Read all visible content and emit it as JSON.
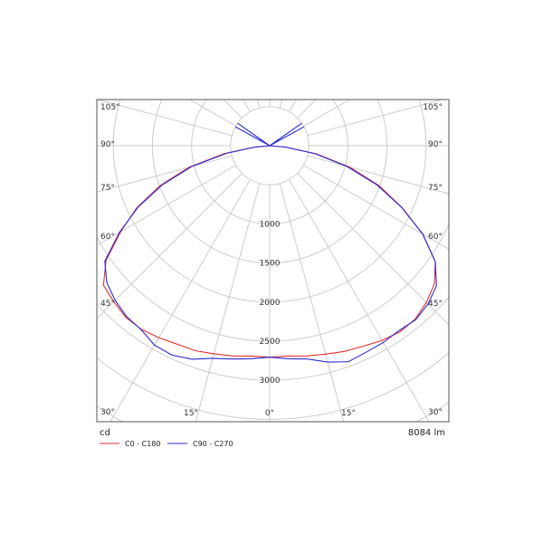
{
  "chart_data": {
    "type": "polar-luminous-intensity",
    "unit_label": "cd",
    "flux_label": "8084 lm",
    "radial_ticks": [
      "1000",
      "1500",
      "2000",
      "2500",
      "3000"
    ],
    "radial_values": [
      1000,
      1500,
      2000,
      2500,
      3000
    ],
    "angle_ticks_left": [
      "105°",
      "90°",
      "75°",
      "60°",
      "45°",
      "30°"
    ],
    "angle_ticks_right": [
      "105°",
      "90°",
      "75°",
      "60°",
      "45°",
      "30°"
    ],
    "angle_ticks_bottom": [
      "15°",
      "0°",
      "15°"
    ],
    "angles": [
      0,
      5,
      10,
      15,
      20,
      25,
      30,
      35,
      40,
      45,
      50,
      55,
      60,
      65,
      70,
      75,
      80,
      85,
      90,
      95,
      100,
      105
    ],
    "series": [
      {
        "name": "C0 - C180",
        "color": "#e03030",
        "side_a": [
          2705,
          2700,
          2730,
          2760,
          2800,
          2830,
          2875,
          2905,
          2895,
          2835,
          2750,
          2585,
          2260,
          1865,
          1485,
          1060,
          610,
          205,
          0,
          0,
          0,
          0
        ],
        "side_b": [
          2705,
          2700,
          2730,
          2755,
          2790,
          2800,
          2835,
          2865,
          2865,
          2820,
          2775,
          2555,
          2200,
          1875,
          1490,
          1065,
          595,
          195,
          0,
          0,
          0,
          0
        ]
      },
      {
        "name": "C90 - C270",
        "color": "#2b2bd0",
        "side_a": [
          2705,
          2735,
          2770,
          2865,
          2940,
          2915,
          2905,
          2885,
          2905,
          2865,
          2785,
          2585,
          2260,
          1855,
          1455,
          1020,
          590,
          200,
          0,
          0,
          0,
          0
        ],
        "side_b": [
          2705,
          2735,
          2770,
          2815,
          2905,
          2955,
          2945,
          2870,
          2850,
          2795,
          2720,
          2575,
          2220,
          1855,
          1460,
          1035,
          560,
          180,
          0,
          0,
          0,
          0
        ],
        "spikes": [
          {
            "angle_start": 90,
            "angle_end": 125,
            "value": 500
          },
          {
            "angle_start": 90,
            "angle_end": 125,
            "value": 500
          }
        ]
      }
    ]
  }
}
